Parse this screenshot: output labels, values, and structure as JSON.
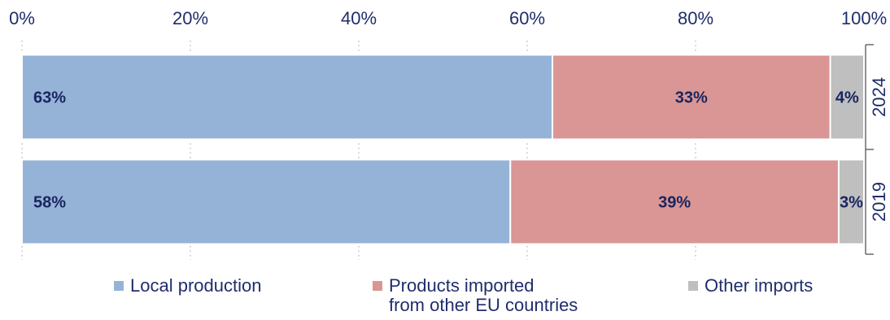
{
  "chart_data": {
    "type": "bar",
    "orientation": "horizontal",
    "stacked": true,
    "categories": [
      "2024",
      "2019"
    ],
    "series": [
      {
        "name": "Local production",
        "values": [
          63,
          58
        ],
        "labels": [
          "63%",
          "58%"
        ],
        "color": "#95b3d7"
      },
      {
        "name": "Products imported\nfrom other EU countries",
        "values": [
          33,
          39
        ],
        "labels": [
          "33%",
          "39%"
        ],
        "color": "#d99694"
      },
      {
        "name": "Other imports",
        "values": [
          4,
          3
        ],
        "labels": [
          "4%",
          "3%"
        ],
        "color": "#bfbfbf"
      }
    ],
    "xlim": [
      0,
      100
    ],
    "x_ticks": [
      0,
      20,
      40,
      60,
      80,
      100
    ],
    "x_tick_labels": [
      "0%",
      "20%",
      "40%",
      "60%",
      "80%",
      "100%"
    ],
    "x_axis_position": "top",
    "category_axis_position": "right",
    "grid": true,
    "legend_position": "bottom",
    "label_color": "#1a2560",
    "axis_text_color": "#1f2d6b"
  }
}
